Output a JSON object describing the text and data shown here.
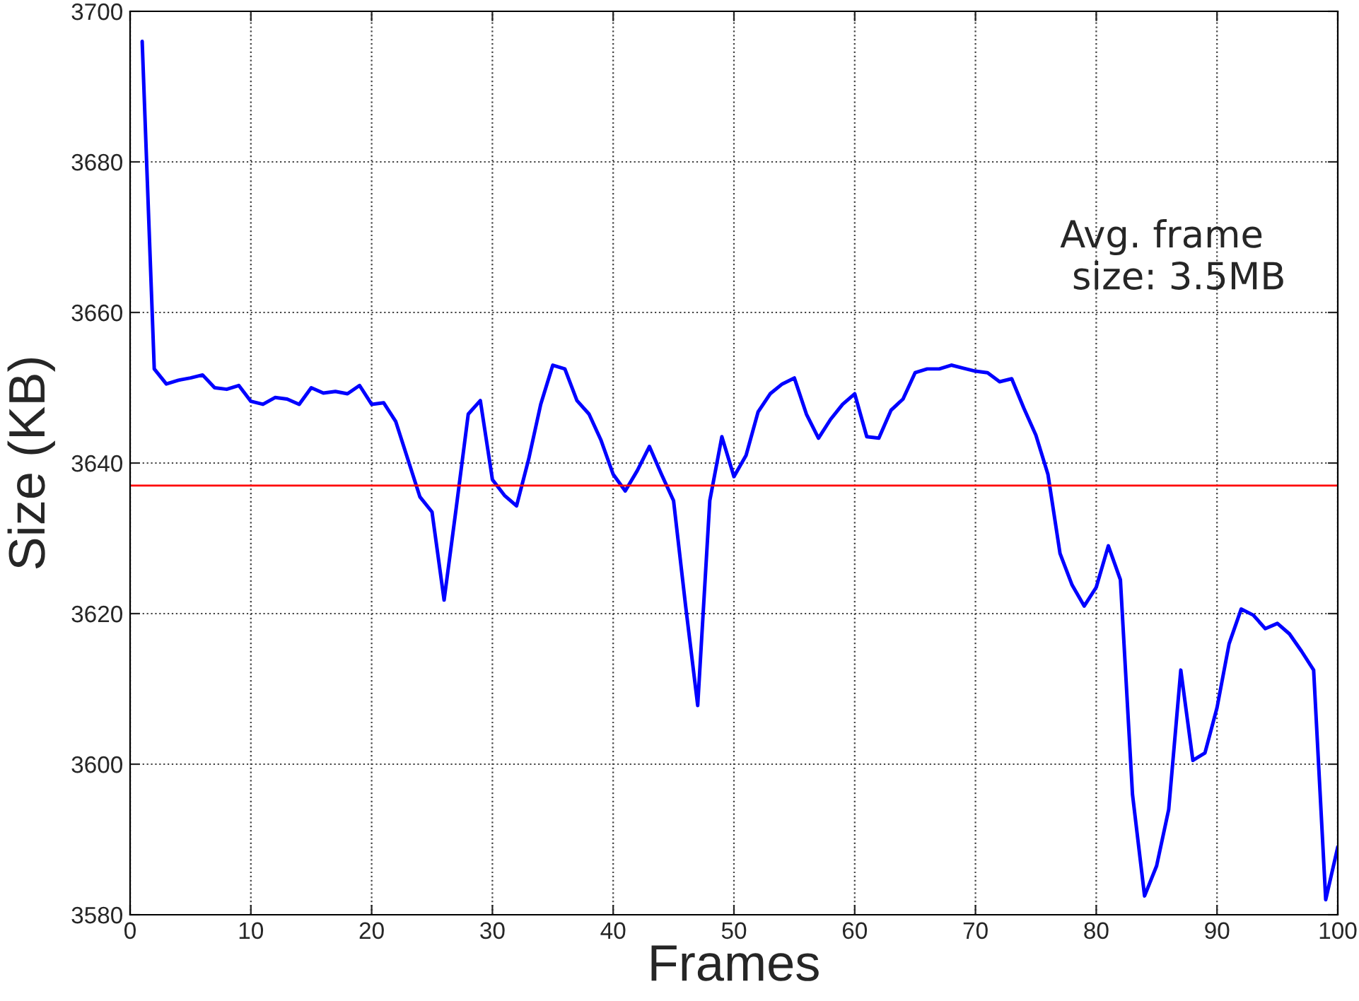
{
  "chart_data": {
    "type": "line",
    "xlabel": "Frames",
    "ylabel": "Size (KB)",
    "x": [
      1,
      2,
      3,
      4,
      5,
      6,
      7,
      8,
      9,
      10,
      11,
      12,
      13,
      14,
      15,
      16,
      17,
      18,
      19,
      20,
      21,
      22,
      23,
      24,
      25,
      26,
      27,
      28,
      29,
      30,
      31,
      32,
      33,
      34,
      35,
      36,
      37,
      38,
      39,
      40,
      41,
      42,
      43,
      44,
      45,
      46,
      47,
      48,
      49,
      50,
      51,
      52,
      53,
      54,
      55,
      56,
      57,
      58,
      59,
      60,
      61,
      62,
      63,
      64,
      65,
      66,
      67,
      68,
      69,
      70,
      71,
      72,
      73,
      74,
      75,
      76,
      77,
      78,
      79,
      80,
      81,
      82,
      83,
      84,
      85,
      86,
      87,
      88,
      89,
      90,
      91,
      92,
      93,
      94,
      95,
      96,
      97,
      98,
      99,
      100
    ],
    "series": [
      {
        "color": "#0000ff",
        "values": [
          3696,
          3652.5,
          3650.5,
          3651,
          3651.3,
          3651.7,
          3650,
          3649.8,
          3650.3,
          3648.2,
          3647.8,
          3648.7,
          3648.5,
          3647.8,
          3650,
          3649.3,
          3649.5,
          3649.2,
          3650.3,
          3647.8,
          3648,
          3645.5,
          3640.5,
          3635.5,
          3633.5,
          3621.8,
          3634,
          3646.5,
          3648.3,
          3637.8,
          3635.7,
          3634.3,
          3640.5,
          3647.8,
          3653,
          3652.5,
          3648.3,
          3646.5,
          3643,
          3638.5,
          3636.3,
          3639,
          3642.2,
          3638.5,
          3635,
          3621,
          3607.8,
          3635,
          3643.5,
          3638.2,
          3641,
          3646.8,
          3649.2,
          3650.5,
          3651.3,
          3646.5,
          3643.3,
          3645.8,
          3647.8,
          3649.2,
          3643.5,
          3643.3,
          3647,
          3648.5,
          3652,
          3652.5,
          3652.5,
          3653,
          3652.6,
          3652.2,
          3652,
          3650.8,
          3651.2,
          3647.3,
          3643.7,
          3638.5,
          3628,
          3623.8,
          3621,
          3623.5,
          3629,
          3624.5,
          3596,
          3582.5,
          3586.5,
          3594,
          3612.5,
          3600.5,
          3601.5,
          3607.5,
          3616,
          3620.6,
          3619.8,
          3618,
          3618.7,
          3617.3,
          3615,
          3612.5,
          3582,
          3589
        ]
      }
    ],
    "ref_lines": [
      {
        "axis": "y",
        "value": 3637,
        "color": "#ff0000",
        "line_style": "solid"
      }
    ],
    "annotations": [
      "Avg. frame\n size: 3.5MB"
    ],
    "xlim": [
      0,
      100
    ],
    "xticks": [
      0,
      10,
      20,
      30,
      40,
      50,
      60,
      70,
      80,
      90,
      100
    ],
    "ylim": [
      3580,
      3700
    ],
    "yticks": [
      3580,
      3600,
      3620,
      3640,
      3660,
      3680,
      3700
    ],
    "grid": true,
    "marker": "none",
    "line_style": "solid",
    "legend": false
  }
}
